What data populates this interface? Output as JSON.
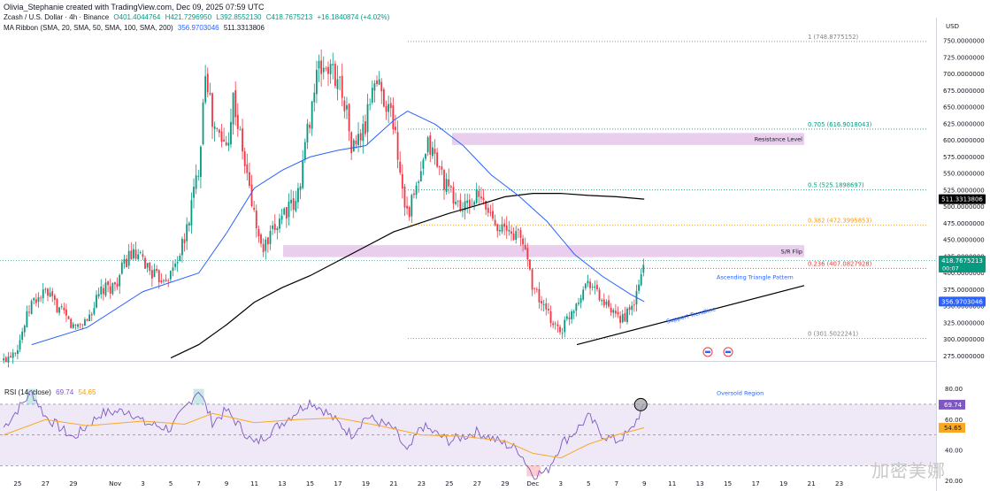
{
  "header": {
    "credit": "Olivia_Stephanie created with TradingView.com, Dec 09, 2025 07:59 UTC",
    "symbol": "Zcash / U.S. Dollar · 4h · Binance",
    "open": "O401.4044764",
    "high": "H421.7296950",
    "low": "L392.8552130",
    "close": "C418.7675213",
    "change": "+16.1840874 (+4.02%)",
    "indicator_name": "MA Ribbon (SMA, 20, SMA, 50, SMA, 100, SMA, 200)",
    "ma50_value": "356.9703046",
    "ma200_value": "511.3313806"
  },
  "currency": "USD",
  "rsi": {
    "title": "RSI (14, close)",
    "value": "69.74",
    "ma_value": "54.65",
    "levels": [
      80,
      60,
      40,
      20
    ],
    "annotation": "Oversold Region"
  },
  "watermark": "加密美娜",
  "chart_data": {
    "type": "candlestick",
    "symbol": "Zcash / U.S. Dollar",
    "timeframe": "4h",
    "exchange": "Binance",
    "y_ticks": [
      275,
      300,
      325,
      350,
      375,
      400,
      425,
      450,
      475,
      500,
      525,
      550,
      575,
      600,
      625,
      650,
      675,
      700,
      725,
      750
    ],
    "y_tick_labels": [
      "275.0000000",
      "300.0000000",
      "325.0000000",
      "350.0000000",
      "375.0000000",
      "400.0000000",
      "425.0000000",
      "450.0000000",
      "475.0000000",
      "500.0000000",
      "525.0000000",
      "550.0000000",
      "575.0000000",
      "600.0000000",
      "625.0000000",
      "650.0000000",
      "675.0000000",
      "700.0000000",
      "725.0000000",
      "750.0000000"
    ],
    "ylim": [
      264,
      765
    ],
    "x_tick_labels": [
      "25",
      "27",
      "29",
      "Nov",
      "3",
      "5",
      "7",
      "9",
      "11",
      "13",
      "15",
      "17",
      "19",
      "21",
      "23",
      "25",
      "27",
      "29",
      "Dec",
      "3",
      "5",
      "7",
      "9",
      "11",
      "13",
      "15",
      "17",
      "19",
      "21",
      "23"
    ],
    "price_path": [
      {
        "date": "Oct 24",
        "price": 268
      },
      {
        "date": "Oct 25",
        "price": 290
      },
      {
        "date": "Oct 26",
        "price": 355
      },
      {
        "date": "Oct 27",
        "price": 370
      },
      {
        "date": "Oct 28",
        "price": 345
      },
      {
        "date": "Oct 29",
        "price": 318
      },
      {
        "date": "Oct 30",
        "price": 330
      },
      {
        "date": "Oct 31",
        "price": 372
      },
      {
        "date": "Nov 1",
        "price": 382
      },
      {
        "date": "Nov 2",
        "price": 428
      },
      {
        "date": "Nov 3",
        "price": 418
      },
      {
        "date": "Nov 4",
        "price": 392
      },
      {
        "date": "Nov 5",
        "price": 398
      },
      {
        "date": "Nov 6",
        "price": 450
      },
      {
        "date": "Nov 7",
        "price": 560
      },
      {
        "date": "Nov 7 12h",
        "price": 718
      },
      {
        "date": "Nov 8",
        "price": 620
      },
      {
        "date": "Nov 9",
        "price": 590
      },
      {
        "date": "Nov 9 12h",
        "price": 666
      },
      {
        "date": "Nov 10",
        "price": 600
      },
      {
        "date": "Nov 11",
        "price": 486
      },
      {
        "date": "Nov 11 12h",
        "price": 435
      },
      {
        "date": "Nov 12",
        "price": 445
      },
      {
        "date": "Nov 13",
        "price": 492
      },
      {
        "date": "Nov 14",
        "price": 502
      },
      {
        "date": "Nov 15",
        "price": 640
      },
      {
        "date": "Nov 15 12h",
        "price": 700
      },
      {
        "date": "Nov 16",
        "price": 712
      },
      {
        "date": "Nov 17",
        "price": 695
      },
      {
        "date": "Nov 17 12h",
        "price": 660
      },
      {
        "date": "Nov 18",
        "price": 585
      },
      {
        "date": "Nov 19",
        "price": 620
      },
      {
        "date": "Nov 19 12h",
        "price": 690
      },
      {
        "date": "Nov 20",
        "price": 682
      },
      {
        "date": "Nov 21",
        "price": 628
      },
      {
        "date": "Nov 21 12h",
        "price": 548
      },
      {
        "date": "Nov 22",
        "price": 488
      },
      {
        "date": "Nov 23",
        "price": 548
      },
      {
        "date": "Nov 23 12h",
        "price": 595
      },
      {
        "date": "Nov 24",
        "price": 572
      },
      {
        "date": "Nov 25",
        "price": 520
      },
      {
        "date": "Nov 26",
        "price": 495
      },
      {
        "date": "Nov 27",
        "price": 515
      },
      {
        "date": "Nov 28",
        "price": 488
      },
      {
        "date": "Nov 29",
        "price": 462
      },
      {
        "date": "Nov 30",
        "price": 458
      },
      {
        "date": "Nov 30 12h",
        "price": 435
      },
      {
        "date": "Dec 1",
        "price": 380
      },
      {
        "date": "Dec 2",
        "price": 338
      },
      {
        "date": "Dec 3",
        "price": 312
      },
      {
        "date": "Dec 4",
        "price": 352
      },
      {
        "date": "Dec 5",
        "price": 392
      },
      {
        "date": "Dec 6",
        "price": 356
      },
      {
        "date": "Dec 7",
        "price": 330
      },
      {
        "date": "Dec 8",
        "price": 340
      },
      {
        "date": "Dec 8 12h",
        "price": 370
      },
      {
        "date": "Dec 9",
        "price": 418.77
      }
    ],
    "ma50": [
      {
        "date": "Oct 26",
        "price": 292
      },
      {
        "date": "Oct 30",
        "price": 318
      },
      {
        "date": "Nov 3",
        "price": 372
      },
      {
        "date": "Nov 7",
        "price": 400
      },
      {
        "date": "Nov 9",
        "price": 460
      },
      {
        "date": "Nov 11",
        "price": 528
      },
      {
        "date": "Nov 13",
        "price": 555
      },
      {
        "date": "Nov 15",
        "price": 575
      },
      {
        "date": "Nov 17",
        "price": 585
      },
      {
        "date": "Nov 19",
        "price": 592
      },
      {
        "date": "Nov 21",
        "price": 630
      },
      {
        "date": "Nov 22",
        "price": 644
      },
      {
        "date": "Nov 24",
        "price": 624
      },
      {
        "date": "Nov 26",
        "price": 592
      },
      {
        "date": "Nov 28",
        "price": 548
      },
      {
        "date": "Nov 30",
        "price": 516
      },
      {
        "date": "Dec 2",
        "price": 478
      },
      {
        "date": "Dec 4",
        "price": 428
      },
      {
        "date": "Dec 6",
        "price": 395
      },
      {
        "date": "Dec 8",
        "price": 368
      },
      {
        "date": "Dec 9",
        "price": 356.97
      }
    ],
    "ma200": [
      {
        "date": "Nov 5",
        "price": 272
      },
      {
        "date": "Nov 7",
        "price": 292
      },
      {
        "date": "Nov 9",
        "price": 322
      },
      {
        "date": "Nov 11",
        "price": 356
      },
      {
        "date": "Nov 13",
        "price": 378
      },
      {
        "date": "Nov 15",
        "price": 396
      },
      {
        "date": "Nov 17",
        "price": 418
      },
      {
        "date": "Nov 19",
        "price": 440
      },
      {
        "date": "Nov 21",
        "price": 462
      },
      {
        "date": "Nov 23",
        "price": 476
      },
      {
        "date": "Nov 25",
        "price": 490
      },
      {
        "date": "Nov 27",
        "price": 502
      },
      {
        "date": "Nov 29",
        "price": 515
      },
      {
        "date": "Dec 1",
        "price": 520
      },
      {
        "date": "Dec 3",
        "price": 520
      },
      {
        "date": "Dec 5",
        "price": 517
      },
      {
        "date": "Dec 7",
        "price": 515
      },
      {
        "date": "Dec 9",
        "price": 511.33
      }
    ],
    "fib_levels": [
      {
        "label": "1 (748.8775152)",
        "price": 748.8775152
      },
      {
        "label": "0.705 (616.9018043)",
        "price": 616.9018043
      },
      {
        "label": "0.5 (525.1898697)",
        "price": 525.1898697
      },
      {
        "label": "0.382 (472.3995853)",
        "price": 472.3995853
      },
      {
        "label": "0.236 (407.0827928)",
        "price": 407.0827928
      },
      {
        "label": "0 (301.5022241)",
        "price": 301.5022241
      }
    ],
    "zones": [
      {
        "label": "Resistance Level",
        "low": 593,
        "high": 611
      },
      {
        "label": "S/R Flip",
        "low": 424,
        "high": 442
      }
    ],
    "annotations": [
      "Ascending Triangle Pattern",
      "Support Trendline"
    ],
    "price_tags": [
      {
        "label": "511.3313806",
        "price": 511.3313806,
        "color": "#000000"
      },
      {
        "label": "418.7675213",
        "price": 418.7675213,
        "sub": "00:07",
        "color": "#089981"
      },
      {
        "label": "356.9703046",
        "price": 356.9703046,
        "color": "#2962ff"
      }
    ],
    "rsi_ylim": [
      20,
      85
    ],
    "rsi": [
      {
        "date": "Oct 24",
        "value": 55
      },
      {
        "date": "Oct 26",
        "value": 78
      },
      {
        "date": "Oct 27",
        "value": 62
      },
      {
        "date": "Oct 29",
        "value": 48
      },
      {
        "date": "Oct 31",
        "value": 64
      },
      {
        "date": "Nov 2",
        "value": 66
      },
      {
        "date": "Nov 3",
        "value": 58
      },
      {
        "date": "Nov 5",
        "value": 54
      },
      {
        "date": "Nov 7",
        "value": 80
      },
      {
        "date": "Nov 8",
        "value": 58
      },
      {
        "date": "Nov 9",
        "value": 66
      },
      {
        "date": "Nov 11",
        "value": 44
      },
      {
        "date": "Nov 13",
        "value": 58
      },
      {
        "date": "Nov 15",
        "value": 72
      },
      {
        "date": "Nov 16",
        "value": 66
      },
      {
        "date": "Nov 18",
        "value": 50
      },
      {
        "date": "Nov 19",
        "value": 62
      },
      {
        "date": "Nov 21",
        "value": 54
      },
      {
        "date": "Nov 22",
        "value": 38
      },
      {
        "date": "Nov 23",
        "value": 56
      },
      {
        "date": "Nov 25",
        "value": 46
      },
      {
        "date": "Nov 27",
        "value": 52
      },
      {
        "date": "Nov 29",
        "value": 44
      },
      {
        "date": "Nov 30",
        "value": 40
      },
      {
        "date": "Dec 1",
        "value": 24
      },
      {
        "date": "Dec 2",
        "value": 26
      },
      {
        "date": "Dec 3",
        "value": 44
      },
      {
        "date": "Dec 4",
        "value": 52
      },
      {
        "date": "Dec 5",
        "value": 62
      },
      {
        "date": "Dec 6",
        "value": 50
      },
      {
        "date": "Dec 7",
        "value": 46
      },
      {
        "date": "Dec 8",
        "value": 52
      },
      {
        "date": "Dec 9",
        "value": 69.74
      }
    ],
    "rsi_ma": [
      {
        "date": "Oct 24",
        "value": 50
      },
      {
        "date": "Oct 27",
        "value": 60
      },
      {
        "date": "Oct 30",
        "value": 56
      },
      {
        "date": "Nov 3",
        "value": 59
      },
      {
        "date": "Nov 6",
        "value": 57
      },
      {
        "date": "Nov 8",
        "value": 64
      },
      {
        "date": "Nov 11",
        "value": 58
      },
      {
        "date": "Nov 14",
        "value": 60
      },
      {
        "date": "Nov 17",
        "value": 61
      },
      {
        "date": "Nov 20",
        "value": 56
      },
      {
        "date": "Nov 23",
        "value": 50
      },
      {
        "date": "Nov 26",
        "value": 49
      },
      {
        "date": "Nov 29",
        "value": 46
      },
      {
        "date": "Dec 1",
        "value": 38
      },
      {
        "date": "Dec 3",
        "value": 35
      },
      {
        "date": "Dec 5",
        "value": 44
      },
      {
        "date": "Dec 7",
        "value": 50
      },
      {
        "date": "Dec 9",
        "value": 54.65
      }
    ],
    "colors": {
      "up": "#089981",
      "down": "#f23645",
      "ma50": "#2962ff",
      "ma200": "#000000",
      "zone": "#e1bee7",
      "rsi": "#7e57c2",
      "rsi_ma": "#f9a825",
      "rsi_band": "#ede7f6",
      "fib": "#808080",
      "fib_orange": "#f39c12",
      "fib_red": "#e53935",
      "fib_green": "#089981"
    }
  }
}
